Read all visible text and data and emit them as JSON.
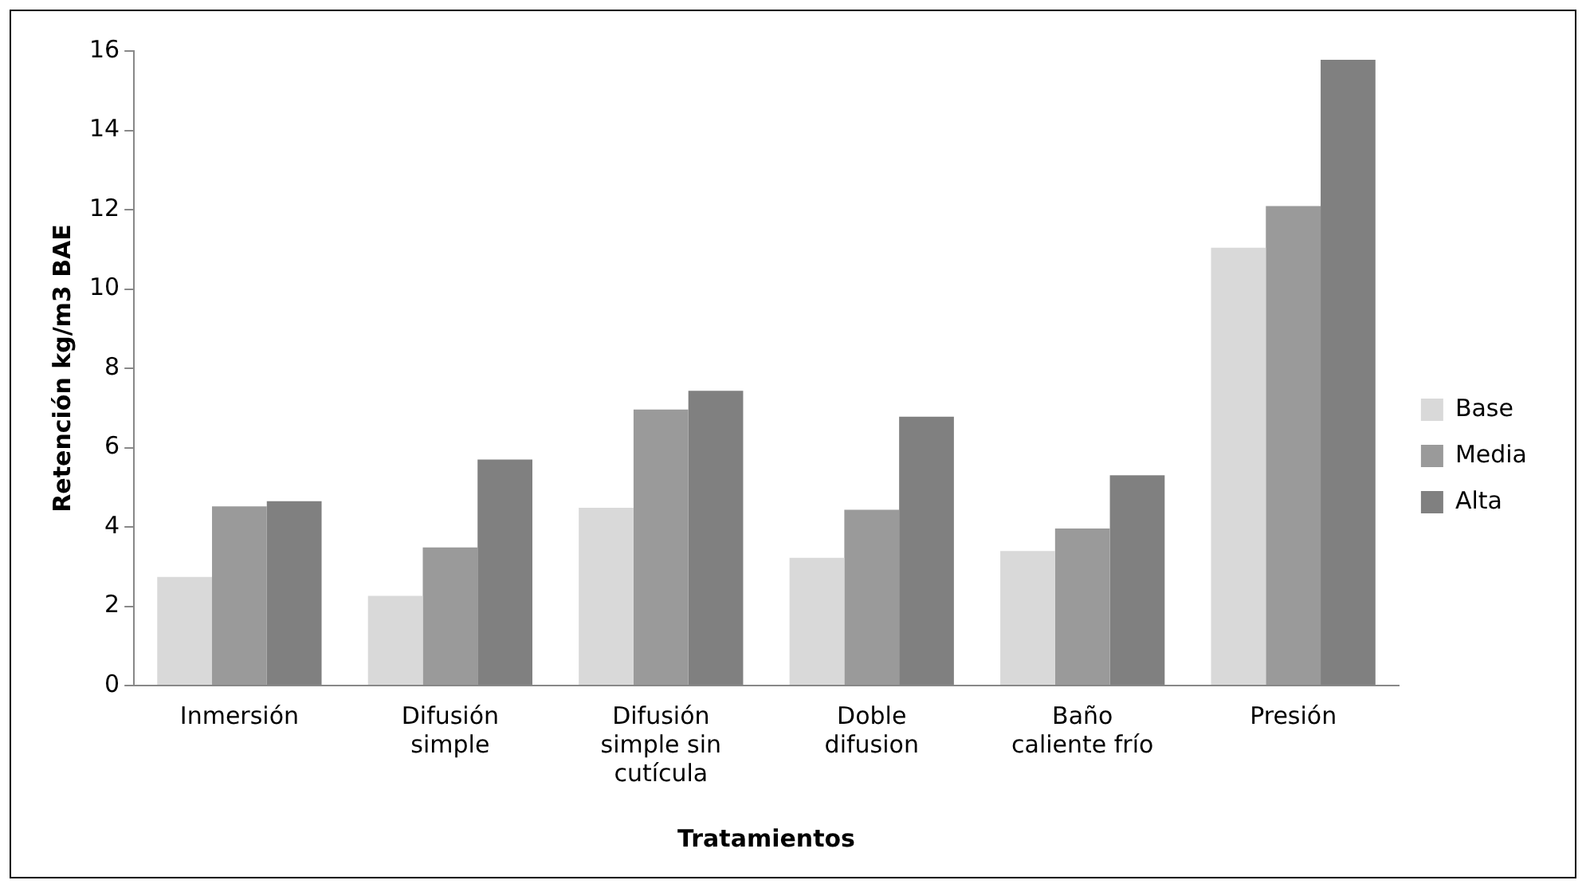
{
  "chart_data": {
    "type": "bar",
    "xlabel": "Tratamientos",
    "ylabel": "Retención kg/m3 BAE",
    "categories": [
      "Inmersión",
      "Difusión simple",
      "Difusión simple sin cutícula",
      "Doble difusion",
      "Baño caliente frío",
      "Presión"
    ],
    "series": [
      {
        "name": "Base",
        "color": "#d9d9d9",
        "values": [
          2.74,
          2.26,
          4.48,
          3.22,
          3.39,
          11.04
        ]
      },
      {
        "name": "Media",
        "color": "#9a9a9a",
        "values": [
          4.52,
          3.48,
          6.96,
          4.43,
          3.96,
          12.09
        ]
      },
      {
        "name": "Alta",
        "color": "#808080",
        "values": [
          4.65,
          5.7,
          7.43,
          6.78,
          5.3,
          15.78
        ]
      }
    ],
    "ylim": [
      0,
      16
    ],
    "yticks": [
      0,
      2,
      4,
      6,
      8,
      10,
      12,
      14,
      16
    ],
    "grid": false,
    "legend": "right"
  }
}
